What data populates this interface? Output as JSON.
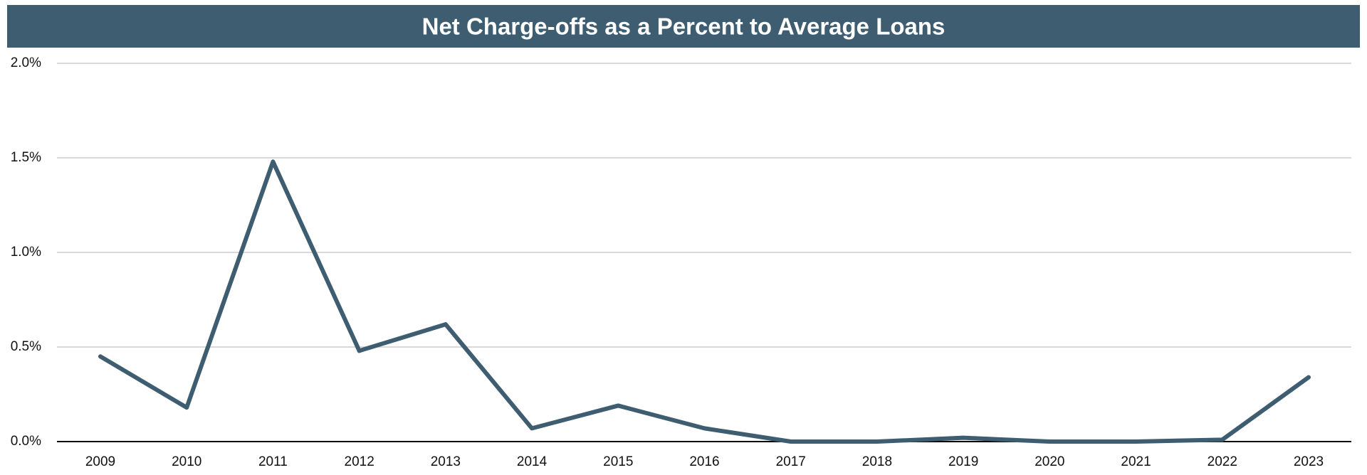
{
  "chart_data": {
    "type": "line",
    "title": "Net Charge-offs as a Percent to Average Loans",
    "categories": [
      "2009",
      "2010",
      "2011",
      "2012",
      "2013",
      "2014",
      "2015",
      "2016",
      "2017",
      "2018",
      "2019",
      "2020",
      "2021",
      "2022",
      "2023"
    ],
    "values": [
      0.45,
      0.18,
      1.48,
      0.48,
      0.62,
      0.07,
      0.19,
      0.07,
      0.0,
      0.0,
      0.02,
      0.0,
      0.0,
      0.01,
      0.34
    ],
    "color": "#3e5d70",
    "ylim": [
      0,
      2
    ],
    "yticks": [
      {
        "value": 0,
        "label": "0.0%"
      },
      {
        "value": 0.5,
        "label": "0.5%"
      },
      {
        "value": 1,
        "label": "1.0%"
      },
      {
        "value": 1.5,
        "label": "1.5%"
      },
      {
        "value": 2,
        "label": "2.0%"
      }
    ],
    "grid": true
  }
}
